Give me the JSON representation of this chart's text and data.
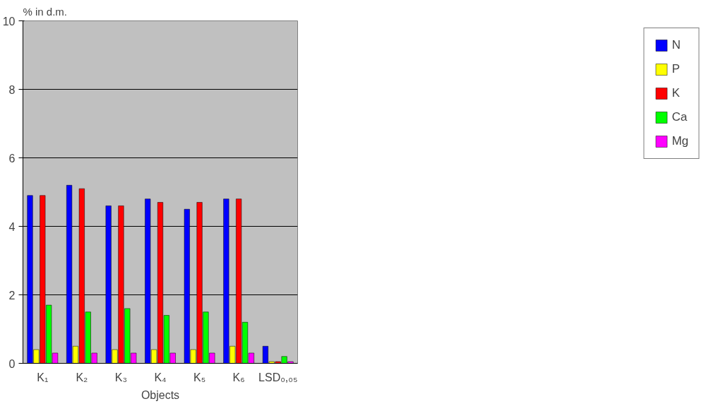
{
  "chart_data": {
    "type": "bar",
    "ylabel": "% in d.m.",
    "xlabel": "Objects",
    "categories": [
      "K₁",
      "K₂",
      "K₃",
      "K₄",
      "K₅",
      "K₆",
      "LSD₀,₀₅"
    ],
    "series": [
      {
        "name": "N",
        "color": "#0000ff",
        "values": [
          4.9,
          5.2,
          4.6,
          4.8,
          4.5,
          4.8,
          0.5
        ]
      },
      {
        "name": "P",
        "color": "#ffff00",
        "values": [
          0.4,
          0.5,
          0.4,
          0.4,
          0.4,
          0.5,
          0.05
        ]
      },
      {
        "name": "K",
        "color": "#ff0000",
        "values": [
          4.9,
          5.1,
          4.6,
          4.7,
          4.7,
          4.8,
          0.05
        ]
      },
      {
        "name": "Ca",
        "color": "#00ff00",
        "values": [
          1.7,
          1.5,
          1.6,
          1.4,
          1.5,
          1.2,
          0.2
        ]
      },
      {
        "name": "Mg",
        "color": "#ff00ff",
        "values": [
          0.3,
          0.3,
          0.3,
          0.3,
          0.3,
          0.3,
          0.05
        ]
      }
    ],
    "ylim": [
      0,
      10
    ],
    "yticks": [
      0,
      2,
      4,
      6,
      8,
      10
    ],
    "grid": "y",
    "legend": "right"
  }
}
